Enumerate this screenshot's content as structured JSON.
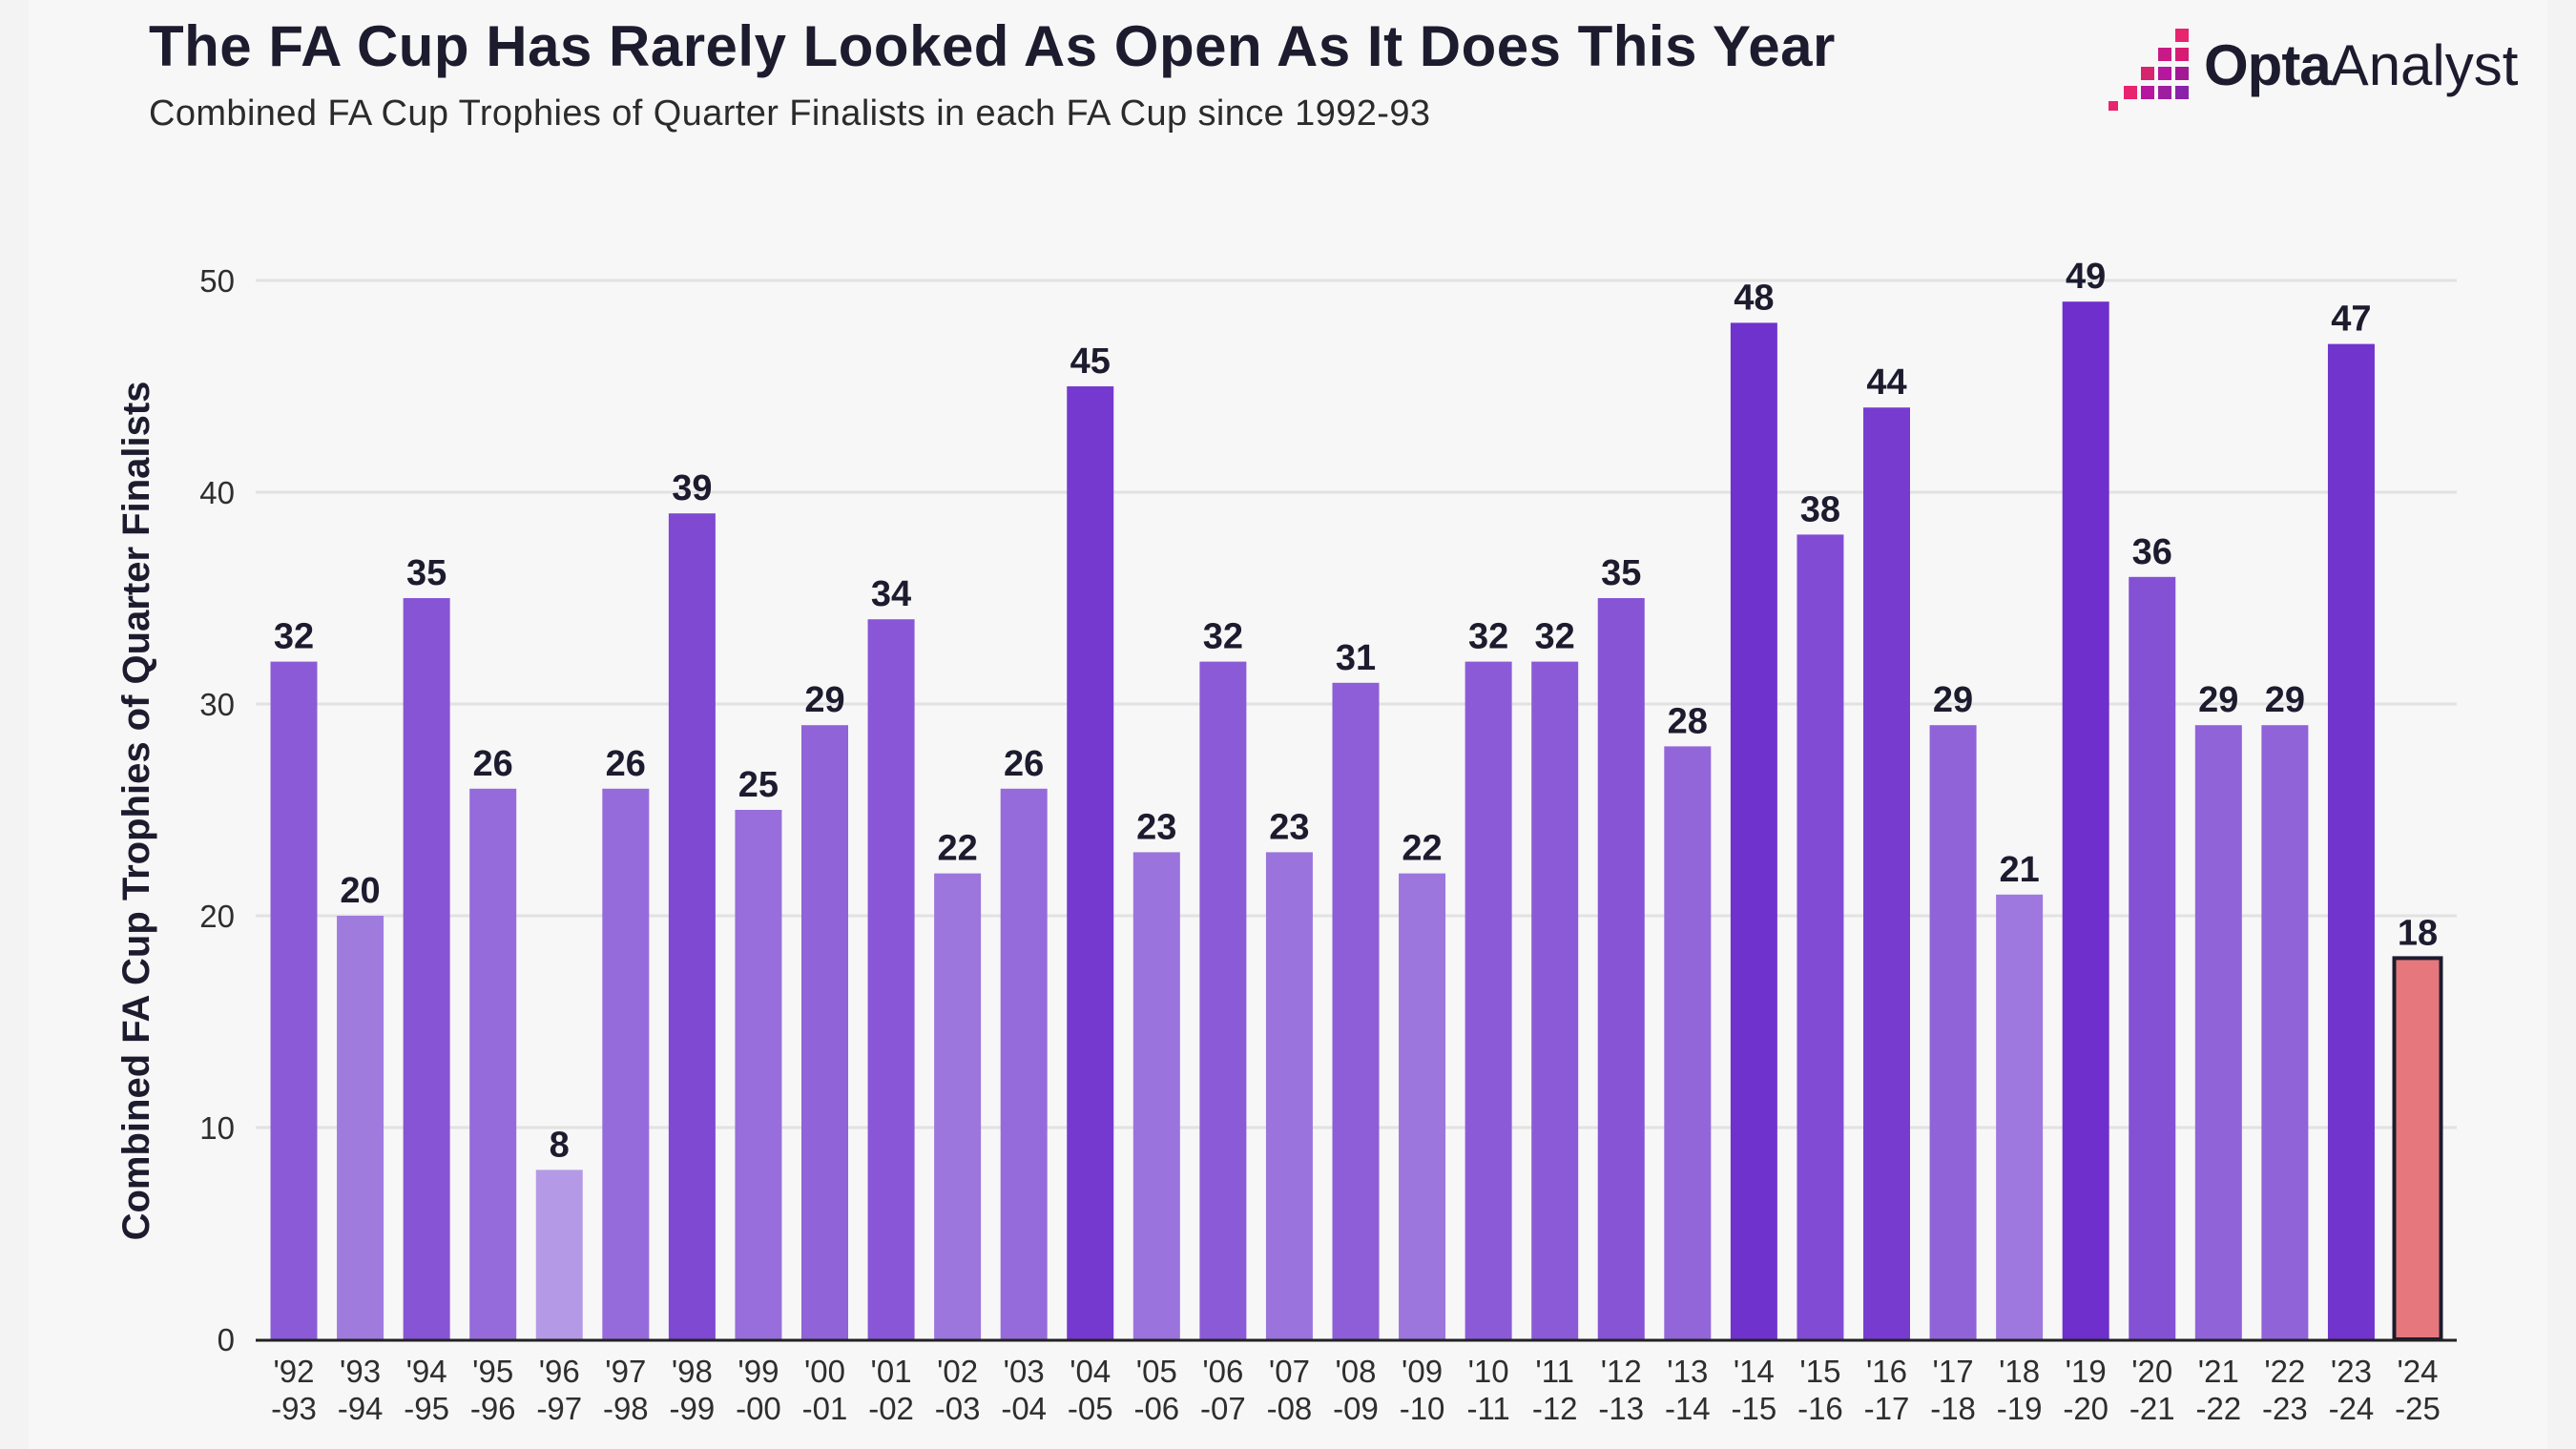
{
  "header": {
    "title": "The FA Cup Has Rarely Looked As Open As It Does This Year",
    "subtitle": "Combined FA Cup Trophies of Quarter Finalists in each FA Cup since 1992-93"
  },
  "logo": {
    "brand": "Opta",
    "product": "Analyst",
    "colors": [
      "#e8246e",
      "#b5179e",
      "#7b2cbf"
    ]
  },
  "chart_data": {
    "type": "bar",
    "title": "The FA Cup Has Rarely Looked As Open As It Does This Year",
    "subtitle": "Combined FA Cup Trophies of Quarter Finalists in each FA Cup since 1992-93",
    "xlabel": "",
    "ylabel": "Combined FA Cup Trophies of Quarter Finalists",
    "ylim": [
      0,
      50
    ],
    "yticks": [
      0,
      10,
      20,
      30,
      40,
      50
    ],
    "grid": true,
    "categories": [
      [
        "'92",
        "-93"
      ],
      [
        "'93",
        "-94"
      ],
      [
        "'94",
        "-95"
      ],
      [
        "'95",
        "-96"
      ],
      [
        "'96",
        "-97"
      ],
      [
        "'97",
        "-98"
      ],
      [
        "'98",
        "-99"
      ],
      [
        "'99",
        "-00"
      ],
      [
        "'00",
        "-01"
      ],
      [
        "'01",
        "-02"
      ],
      [
        "'02",
        "-03"
      ],
      [
        "'03",
        "-04"
      ],
      [
        "'04",
        "-05"
      ],
      [
        "'05",
        "-06"
      ],
      [
        "'06",
        "-07"
      ],
      [
        "'07",
        "-08"
      ],
      [
        "'08",
        "-09"
      ],
      [
        "'09",
        "-10"
      ],
      [
        "'10",
        "-11"
      ],
      [
        "'11",
        "-12"
      ],
      [
        "'12",
        "-13"
      ],
      [
        "'13",
        "-14"
      ],
      [
        "'14",
        "-15"
      ],
      [
        "'15",
        "-16"
      ],
      [
        "'16",
        "-17"
      ],
      [
        "'17",
        "-18"
      ],
      [
        "'18",
        "-19"
      ],
      [
        "'19",
        "-20"
      ],
      [
        "'20",
        "-21"
      ],
      [
        "'21",
        "-22"
      ],
      [
        "'22",
        "-23"
      ],
      [
        "'23",
        "-24"
      ],
      [
        "'24",
        "-25"
      ]
    ],
    "values": [
      32,
      20,
      35,
      26,
      8,
      26,
      39,
      25,
      29,
      34,
      22,
      26,
      45,
      23,
      32,
      23,
      31,
      22,
      32,
      32,
      35,
      28,
      48,
      38,
      44,
      29,
      21,
      49,
      36,
      29,
      29,
      47,
      18
    ],
    "colors": {
      "bar_low": "#b49ae6",
      "bar_high": "#6e2fcc",
      "highlight": "#e6787d",
      "highlight_outline": "#1d1b2e",
      "grid": "#e2e2e2",
      "axis": "#222222"
    },
    "highlight_index": 32
  }
}
